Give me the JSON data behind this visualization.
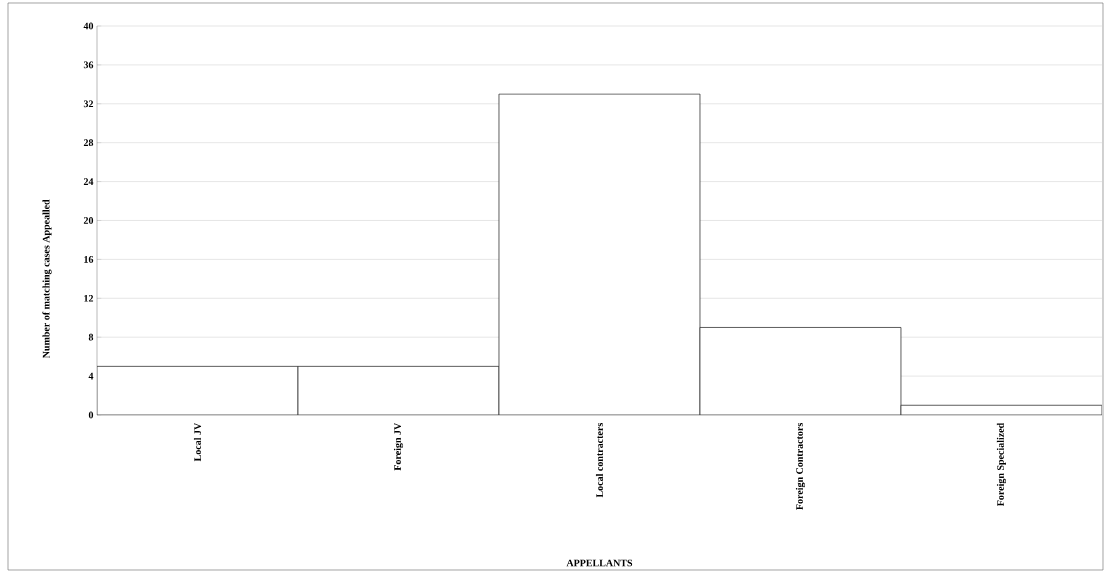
{
  "chart_data": {
    "type": "bar",
    "xlabel": "APPELLANTS",
    "ylabel": "Number of matching cases Appealled",
    "categories": [
      "Local JV",
      "Foreign JV",
      "Local contracters",
      "Foreign Contractors",
      "Foreign Specialized"
    ],
    "values": [
      5,
      5,
      33,
      9,
      1
    ],
    "color": "#ffffff",
    "ylim": [
      0,
      40
    ],
    "yticks": [
      0,
      4,
      8,
      12,
      16,
      20,
      24,
      28,
      32,
      36,
      40
    ],
    "grid": "y"
  }
}
